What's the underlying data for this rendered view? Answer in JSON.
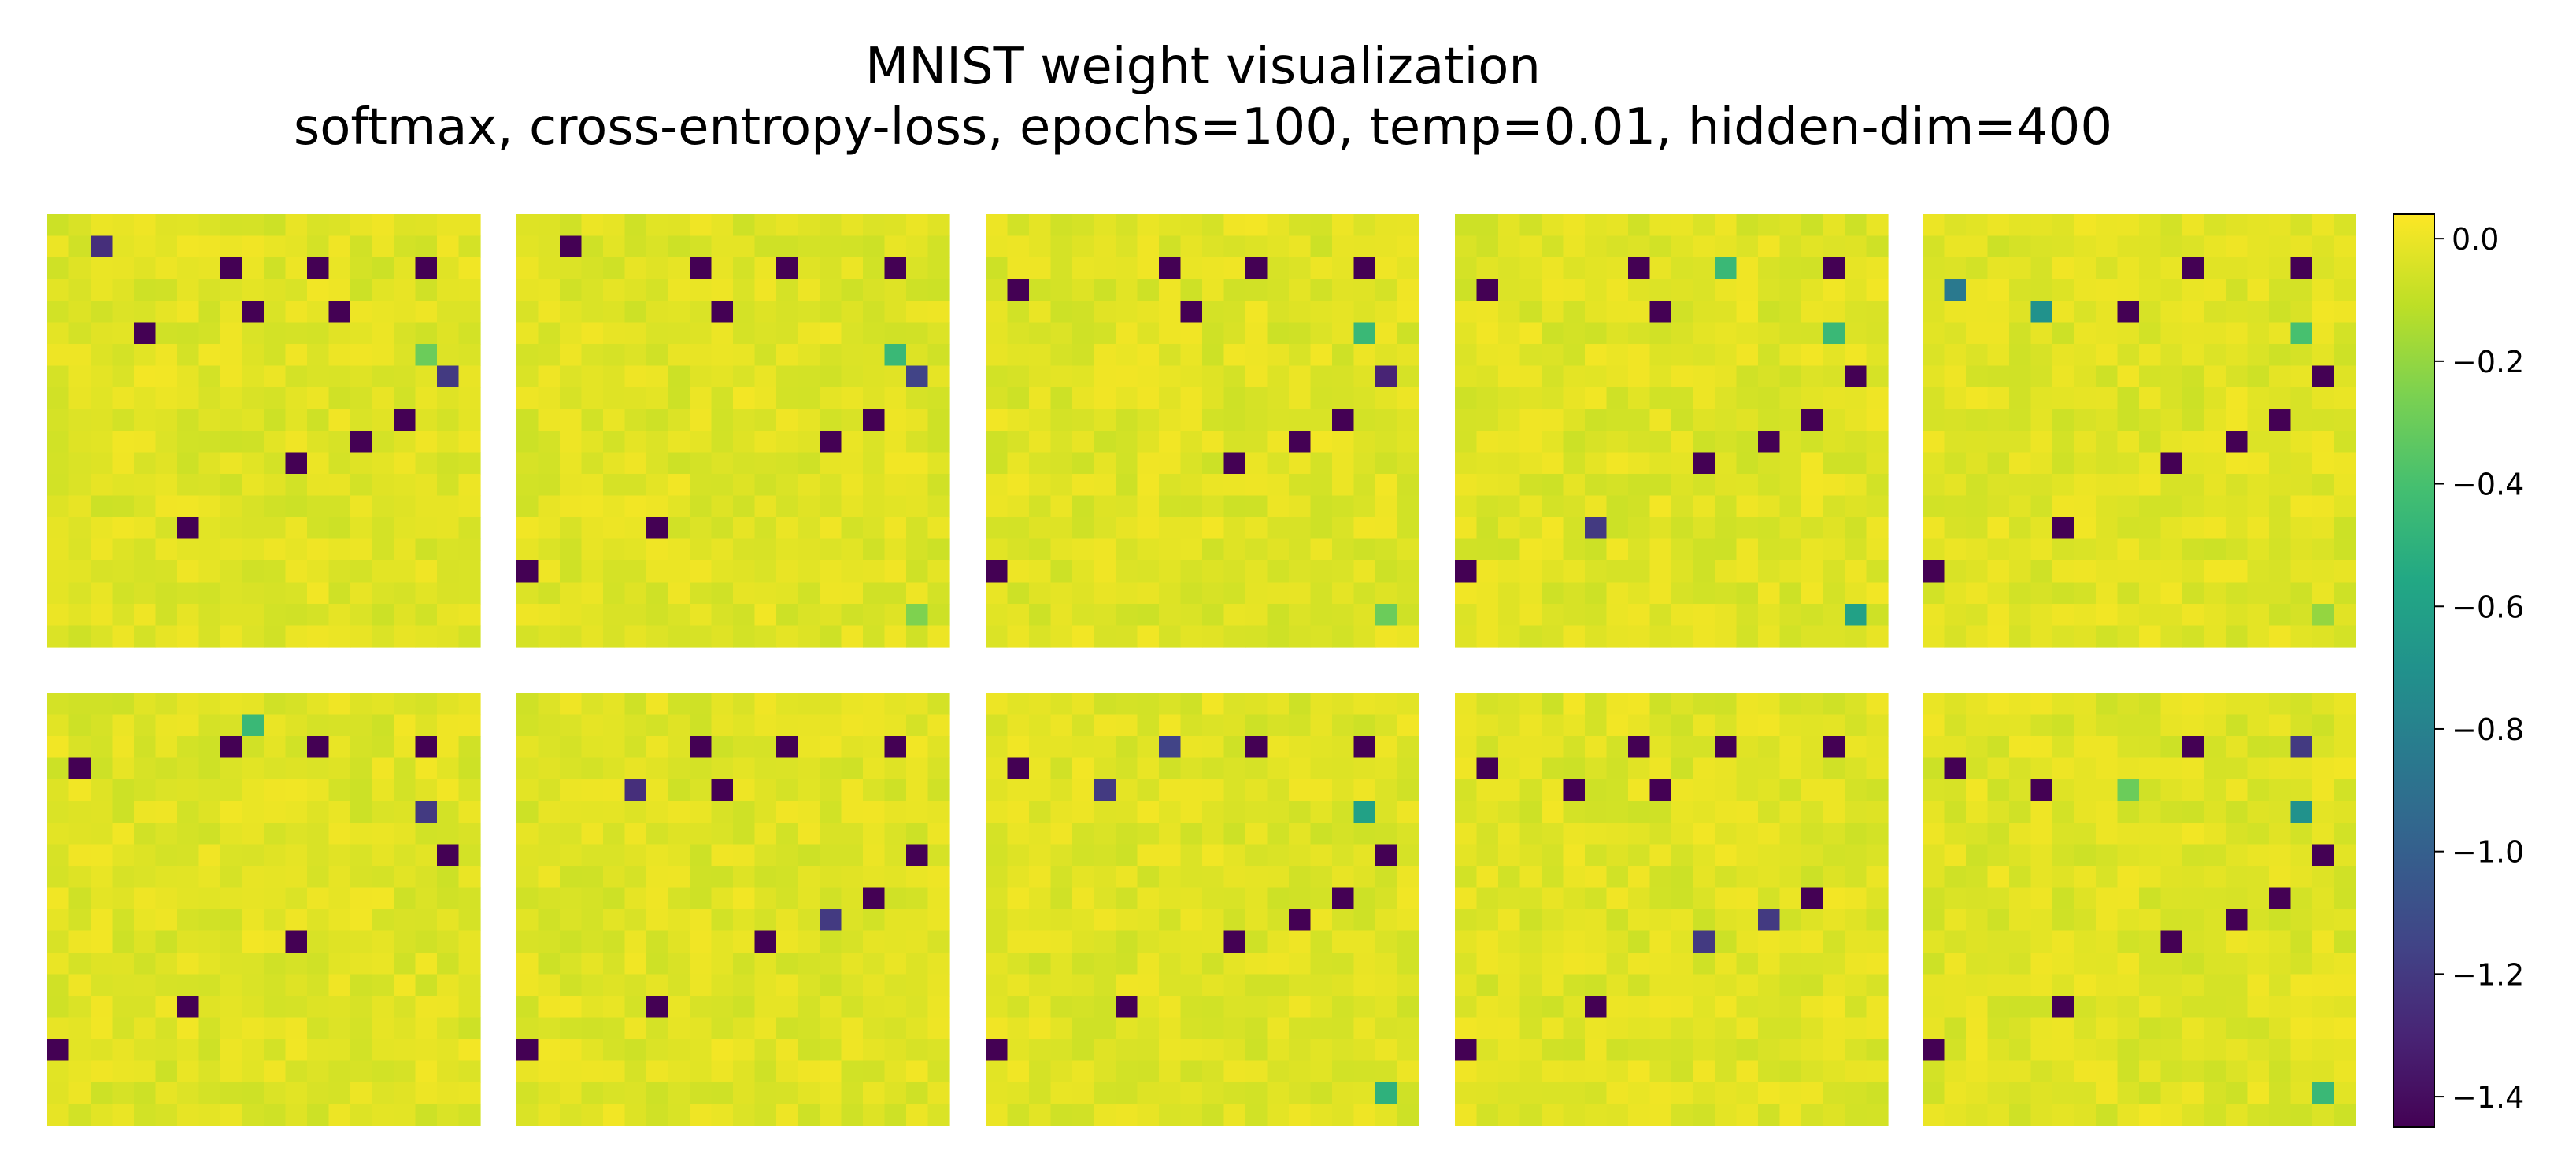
{
  "chart_data": {
    "type": "heatmap",
    "title_lines": [
      "MNIST weight visualization",
      "softmax, cross-entropy-loss, epochs=100, temp=0.01, hidden-dim=400"
    ],
    "grid": "2x5",
    "cell_resolution": [
      20,
      20
    ],
    "background_value": -0.02,
    "colormap": "viridis",
    "colorbar": {
      "vmin": -1.45,
      "vmax": 0.04,
      "ticks": [
        0.0,
        -0.2,
        -0.4,
        -0.6,
        -0.8,
        -1.0,
        -1.2,
        -1.4
      ],
      "tick_labels": [
        "0.0",
        "−0.2",
        "−0.4",
        "−0.6",
        "−0.8",
        "−1.0",
        "−1.2",
        "−1.4"
      ]
    },
    "panels": [
      {
        "cells": [
          [
            2,
            1,
            -1.25
          ],
          [
            4,
            5,
            -1.45
          ],
          [
            8,
            2,
            -1.45
          ],
          [
            9,
            4,
            -1.45
          ],
          [
            12,
            2,
            -1.45
          ],
          [
            13,
            4,
            -1.45
          ],
          [
            17,
            2,
            -1.45
          ],
          [
            17,
            6,
            -0.3
          ],
          [
            18,
            7,
            -1.2
          ],
          [
            16,
            9,
            -1.45
          ],
          [
            14,
            10,
            -1.45
          ],
          [
            11,
            11,
            -1.45
          ],
          [
            6,
            14,
            -1.45
          ]
        ]
      },
      {
        "cells": [
          [
            2,
            1,
            -1.45
          ],
          [
            8,
            2,
            -1.45
          ],
          [
            9,
            4,
            -1.45
          ],
          [
            12,
            2,
            -1.45
          ],
          [
            17,
            2,
            -1.45
          ],
          [
            17,
            6,
            -0.45
          ],
          [
            18,
            7,
            -1.15
          ],
          [
            16,
            9,
            -1.45
          ],
          [
            14,
            10,
            -1.45
          ],
          [
            6,
            14,
            -1.45
          ],
          [
            0,
            16,
            -1.45
          ],
          [
            18,
            18,
            -0.25
          ]
        ]
      },
      {
        "cells": [
          [
            1,
            3,
            -1.45
          ],
          [
            8,
            2,
            -1.45
          ],
          [
            9,
            4,
            -1.45
          ],
          [
            12,
            2,
            -1.45
          ],
          [
            17,
            2,
            -1.45
          ],
          [
            17,
            5,
            -0.45
          ],
          [
            18,
            7,
            -1.3
          ],
          [
            16,
            9,
            -1.45
          ],
          [
            14,
            10,
            -1.45
          ],
          [
            11,
            11,
            -1.45
          ],
          [
            0,
            16,
            -1.45
          ],
          [
            18,
            18,
            -0.3
          ]
        ]
      },
      {
        "cells": [
          [
            1,
            3,
            -1.45
          ],
          [
            8,
            2,
            -1.45
          ],
          [
            9,
            4,
            -1.45
          ],
          [
            12,
            2,
            -1.45
          ],
          [
            12,
            2,
            -0.45
          ],
          [
            17,
            2,
            -1.45
          ],
          [
            17,
            5,
            -0.45
          ],
          [
            18,
            7,
            -1.45
          ],
          [
            16,
            9,
            -1.45
          ],
          [
            14,
            10,
            -1.45
          ],
          [
            11,
            11,
            -1.45
          ],
          [
            6,
            14,
            -1.2
          ],
          [
            0,
            16,
            -1.45
          ],
          [
            18,
            18,
            -0.6
          ]
        ]
      },
      {
        "cells": [
          [
            1,
            3,
            -0.85
          ],
          [
            5,
            4,
            -0.7
          ],
          [
            9,
            4,
            -1.45
          ],
          [
            12,
            2,
            -1.45
          ],
          [
            17,
            2,
            -1.45
          ],
          [
            17,
            5,
            -0.4
          ],
          [
            18,
            7,
            -1.45
          ],
          [
            16,
            9,
            -1.45
          ],
          [
            14,
            10,
            -1.45
          ],
          [
            11,
            11,
            -1.45
          ],
          [
            6,
            14,
            -1.45
          ],
          [
            0,
            16,
            -1.45
          ],
          [
            18,
            18,
            -0.2
          ]
        ]
      },
      {
        "cells": [
          [
            1,
            3,
            -1.45
          ],
          [
            8,
            2,
            -1.45
          ],
          [
            9,
            1,
            -0.45
          ],
          [
            12,
            2,
            -1.45
          ],
          [
            17,
            2,
            -1.45
          ],
          [
            17,
            5,
            -1.2
          ],
          [
            18,
            7,
            -1.45
          ],
          [
            11,
            11,
            -1.45
          ],
          [
            6,
            14,
            -1.45
          ],
          [
            0,
            16,
            -1.45
          ]
        ]
      },
      {
        "cells": [
          [
            5,
            4,
            -1.25
          ],
          [
            8,
            2,
            -1.45
          ],
          [
            9,
            4,
            -1.45
          ],
          [
            12,
            2,
            -1.45
          ],
          [
            17,
            2,
            -1.45
          ],
          [
            18,
            7,
            -1.45
          ],
          [
            16,
            9,
            -1.45
          ],
          [
            14,
            10,
            -1.2
          ],
          [
            11,
            11,
            -1.45
          ],
          [
            6,
            14,
            -1.45
          ],
          [
            0,
            16,
            -1.45
          ]
        ]
      },
      {
        "cells": [
          [
            1,
            3,
            -1.45
          ],
          [
            5,
            4,
            -1.2
          ],
          [
            8,
            2,
            -1.15
          ],
          [
            12,
            2,
            -1.45
          ],
          [
            17,
            2,
            -1.45
          ],
          [
            17,
            5,
            -0.6
          ],
          [
            18,
            7,
            -1.45
          ],
          [
            16,
            9,
            -1.45
          ],
          [
            14,
            10,
            -1.45
          ],
          [
            11,
            11,
            -1.45
          ],
          [
            6,
            14,
            -1.45
          ],
          [
            0,
            16,
            -1.45
          ],
          [
            18,
            18,
            -0.5
          ]
        ]
      },
      {
        "cells": [
          [
            1,
            3,
            -1.45
          ],
          [
            5,
            4,
            -1.45
          ],
          [
            8,
            2,
            -1.45
          ],
          [
            9,
            4,
            -1.45
          ],
          [
            12,
            2,
            -1.45
          ],
          [
            17,
            2,
            -1.45
          ],
          [
            16,
            9,
            -1.45
          ],
          [
            14,
            10,
            -1.2
          ],
          [
            11,
            11,
            -1.2
          ],
          [
            6,
            14,
            -1.45
          ],
          [
            0,
            16,
            -1.45
          ]
        ]
      },
      {
        "cells": [
          [
            1,
            3,
            -1.45
          ],
          [
            5,
            4,
            -1.45
          ],
          [
            9,
            4,
            -0.3
          ],
          [
            12,
            2,
            -1.45
          ],
          [
            17,
            2,
            -1.2
          ],
          [
            17,
            5,
            -0.7
          ],
          [
            18,
            7,
            -1.45
          ],
          [
            16,
            9,
            -1.45
          ],
          [
            14,
            10,
            -1.45
          ],
          [
            11,
            11,
            -1.45
          ],
          [
            6,
            14,
            -1.45
          ],
          [
            0,
            16,
            -1.45
          ],
          [
            18,
            18,
            -0.45
          ]
        ]
      }
    ]
  }
}
